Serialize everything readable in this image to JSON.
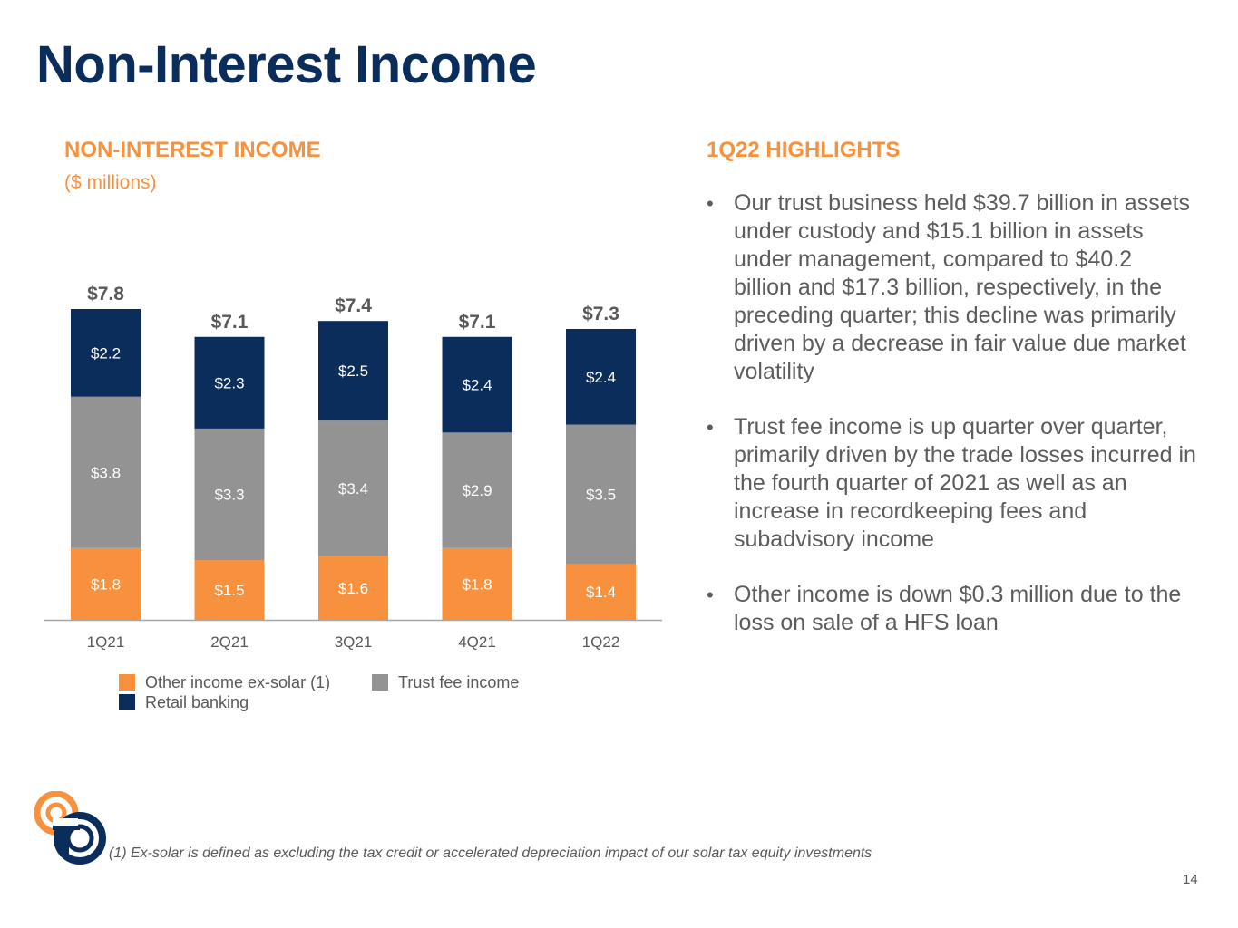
{
  "slide": {
    "title": "Non-Interest Income",
    "page_number": "14",
    "footnote": "(1) Ex-solar is defined as excluding the tax credit or accelerated depreciation impact of our solar tax equity investments"
  },
  "chart_section": {
    "heading": "NON-INTEREST INCOME",
    "subheading": "($ millions)"
  },
  "highlights": {
    "heading": "1Q22 HIGHLIGHTS",
    "bullet_glyph": "•",
    "bullets": [
      "Our trust business held $39.7 billion in assets under custody and $15.1 billion in assets under management, compared to $40.2 billion and $17.3 billion, respectively, in the preceding quarter; this decline was primarily driven by a decrease in fair value due market volatility",
      "Trust fee income is up quarter over quarter, primarily driven by the trade losses incurred in the fourth quarter of 2021 as well as an increase in recordkeeping fees and subadvisory income",
      "Other income is down $0.3 million due to the loss on sale of a HFS loan"
    ]
  },
  "colors": {
    "title": "#0b2d5b",
    "accent_orange": "#f7913d",
    "trust_gray": "#939393",
    "retail_navy": "#0b2d5b",
    "body_text": "#5c5c5c"
  },
  "chart_data": {
    "type": "bar",
    "stacked": true,
    "categories": [
      "1Q21",
      "2Q21",
      "3Q21",
      "4Q21",
      "1Q22"
    ],
    "series": [
      {
        "name": "Other income ex-solar (1)",
        "color": "#f7913d",
        "values": [
          1.8,
          1.5,
          1.6,
          1.8,
          1.4
        ],
        "labels": [
          "$1.8",
          "$1.5",
          "$1.6",
          "$1.8",
          "$1.4"
        ]
      },
      {
        "name": "Trust fee income",
        "color": "#939393",
        "values": [
          3.8,
          3.3,
          3.4,
          2.9,
          3.5
        ],
        "labels": [
          "$3.8",
          "$3.3",
          "$3.4",
          "$2.9",
          "$3.5"
        ]
      },
      {
        "name": "Retail banking",
        "color": "#0b2d5b",
        "values": [
          2.2,
          2.3,
          2.5,
          2.4,
          2.4
        ],
        "labels": [
          "$2.2",
          "$2.3",
          "$2.5",
          "$2.4",
          "$2.4"
        ]
      }
    ],
    "totals": [
      7.8,
      7.1,
      7.4,
      7.1,
      7.3
    ],
    "total_labels": [
      "$7.8",
      "$7.1",
      "$7.4",
      "$7.1",
      "$7.3"
    ],
    "ylim": [
      0,
      7.8
    ],
    "grid": false,
    "legend_position": "bottom-left",
    "xlabel": "",
    "ylabel": ""
  }
}
